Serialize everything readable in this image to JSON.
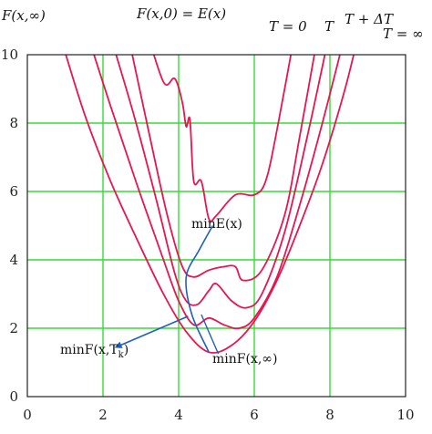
{
  "chart_data": {
    "type": "line",
    "xlim": [
      0,
      10
    ],
    "ylim": [
      0,
      10
    ],
    "x_ticks": [
      "0",
      "2",
      "4",
      "6",
      "8",
      "10"
    ],
    "y_ticks": [
      "0",
      "2",
      "4",
      "6",
      "8",
      "10"
    ],
    "grid": true,
    "grid_color": "#33dd33",
    "curve_color": "#e8154f",
    "arrow_color": "#1f5fbf",
    "series": [
      {
        "name": "F(x,∞)",
        "x": [
          0.8,
          1.5,
          2.2,
          2.9,
          3.6,
          4.2,
          4.8,
          5.4,
          6.0,
          6.6,
          7.2,
          7.8,
          8.4,
          8.8
        ],
        "y": [
          10.8,
          8.3,
          6.3,
          4.6,
          3.0,
          1.9,
          1.3,
          1.5,
          2.2,
          3.4,
          5.0,
          6.8,
          9.0,
          10.8
        ]
      },
      {
        "name": "T + ΔT",
        "x": [
          1.5,
          2.2,
          2.9,
          3.6,
          4.0,
          4.4,
          4.8,
          5.2,
          5.6,
          6.0,
          6.6,
          7.2,
          7.8,
          8.4
        ],
        "y": [
          10.9,
          8.5,
          6.2,
          4.0,
          2.8,
          2.1,
          2.3,
          2.1,
          2.0,
          2.3,
          3.5,
          5.6,
          8.0,
          10.6
        ]
      },
      {
        "name": "T",
        "x": [
          2.1,
          2.8,
          3.4,
          3.9,
          4.2,
          4.5,
          4.8,
          5.0,
          5.4,
          5.8,
          6.2,
          6.8,
          7.4,
          8.0
        ],
        "y": [
          10.9,
          8.3,
          5.8,
          3.6,
          2.8,
          2.7,
          3.1,
          3.3,
          2.8,
          2.6,
          3.0,
          4.8,
          7.6,
          10.7
        ]
      },
      {
        "name": "T = 0",
        "x": [
          2.6,
          3.2,
          3.7,
          4.1,
          4.4,
          4.8,
          5.2,
          5.5,
          5.7,
          6.2,
          6.8,
          7.2,
          7.7
        ],
        "y": [
          10.9,
          7.8,
          5.3,
          3.8,
          3.5,
          3.7,
          3.8,
          3.8,
          3.4,
          3.7,
          5.3,
          7.6,
          10.7
        ]
      },
      {
        "name": "F(x,0) = E(x)",
        "x": [
          3.1,
          3.6,
          3.9,
          4.1,
          4.2,
          4.3,
          4.4,
          4.6,
          4.8,
          5.0,
          5.5,
          6.0,
          6.3,
          6.6,
          7.1
        ],
        "y": [
          10.9,
          9.2,
          9.3,
          8.6,
          7.9,
          8.1,
          6.3,
          6.3,
          5.2,
          5.3,
          5.9,
          5.9,
          6.3,
          7.8,
          10.8
        ]
      }
    ],
    "annotations": [
      {
        "text": "minE(x)",
        "x": 4.9,
        "y": 5.0
      },
      {
        "text": "minF(x,∞)",
        "x": 4.8,
        "y": 1.25
      },
      {
        "text": "minF(x,T_k)",
        "x": 0.7,
        "y": 1.3
      }
    ]
  },
  "labels": {
    "f_inf": "F(x,∞)",
    "f0": "F(x,0) = E(x)",
    "t0": "T = 0",
    "t": "T",
    "tdt": "T + ΔT",
    "tinf": "T = ∞",
    "min_e": "minE(x)",
    "min_finf": "minF(x,∞)",
    "min_ftk": "minF(x,T",
    "min_ftk_sub": "k",
    "min_ftk_close": ")"
  }
}
